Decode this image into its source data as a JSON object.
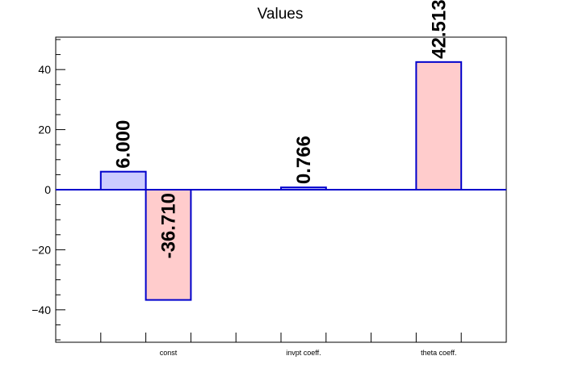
{
  "chart_data": {
    "type": "bar",
    "title": "Values",
    "xlabel": "",
    "ylabel": "",
    "ylim": [
      -50.8,
      50.8
    ],
    "yticks": [
      -40,
      -20,
      0,
      20,
      40
    ],
    "ytick_labels": [
      "−40",
      "−20",
      "0",
      "20",
      "40"
    ],
    "grid": false,
    "bin_labels": [
      "",
      "const",
      "",
      "invpt coeff.",
      "",
      "theta coeff.",
      ""
    ],
    "series": [
      {
        "color": "#ccccff",
        "values": [
          0,
          6.0,
          0,
          0,
          0,
          0,
          0
        ]
      },
      {
        "color": "#ffcccc",
        "values": [
          0,
          -36.71,
          0,
          0,
          0,
          42.513,
          0
        ]
      },
      {
        "color": "#ccccff",
        "values": [
          0,
          0,
          0,
          0.766,
          0,
          0,
          0
        ]
      }
    ],
    "bars": [
      {
        "bin": 0.0,
        "value": 6.0,
        "label": "6.000",
        "fill": "#ccccff"
      },
      {
        "bin": 1.0,
        "value": -36.71,
        "label": "-36.710",
        "fill": "#ffcccc"
      },
      {
        "bin": 4.0,
        "value": 0.766,
        "label": "0.766",
        "fill": "#ccccff"
      },
      {
        "bin": 7.0,
        "value": 42.513,
        "label": "42.513",
        "fill": "#ffcccc"
      }
    ],
    "bar_outline_color": "#0000cc",
    "zero_line_color": "#0000cc"
  }
}
